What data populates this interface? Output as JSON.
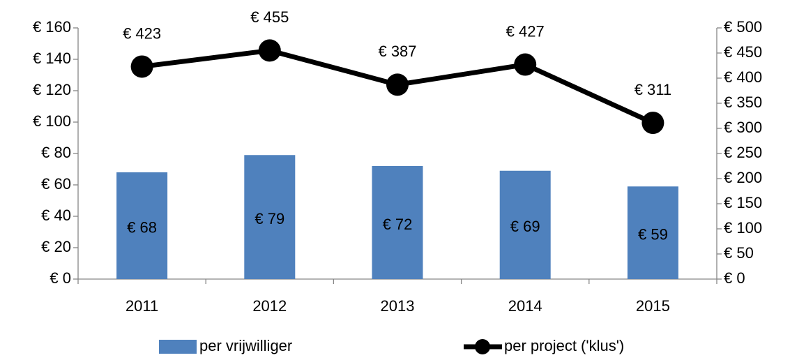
{
  "chart_data": {
    "type": "bar",
    "categories": [
      "2011",
      "2012",
      "2013",
      "2014",
      "2015"
    ],
    "series": [
      {
        "name": "per vrijwilliger",
        "type": "bar",
        "color": "#4f81bd",
        "values": [
          68,
          79,
          72,
          69,
          59
        ],
        "value_labels": [
          "€ 68",
          "€ 79",
          "€ 72",
          "€ 69",
          "€ 59"
        ]
      },
      {
        "name": "per project ('klus')",
        "type": "line",
        "axis": "y2",
        "color": "#000000",
        "values": [
          423,
          455,
          387,
          427,
          311
        ],
        "value_labels": [
          "€ 423",
          "€ 455",
          "€ 387",
          "€ 427",
          "€ 311"
        ]
      }
    ],
    "ylim": [
      0,
      160
    ],
    "yticks": [
      {
        "value": 0,
        "label": "€ 0"
      },
      {
        "value": 20,
        "label": "€ 20"
      },
      {
        "value": 40,
        "label": "€ 40"
      },
      {
        "value": 60,
        "label": "€ 60"
      },
      {
        "value": 80,
        "label": "€ 80"
      },
      {
        "value": 100,
        "label": "€ 100"
      },
      {
        "value": 120,
        "label": "€ 120"
      },
      {
        "value": 140,
        "label": "€ 140"
      },
      {
        "value": 160,
        "label": "€ 160"
      }
    ],
    "y2lim": [
      0,
      500
    ],
    "y2ticks": [
      {
        "value": 0,
        "label": "€ 0"
      },
      {
        "value": 50,
        "label": "€ 50"
      },
      {
        "value": 100,
        "label": "€ 100"
      },
      {
        "value": 150,
        "label": "€ 150"
      },
      {
        "value": 200,
        "label": "€ 200"
      },
      {
        "value": 250,
        "label": "€ 250"
      },
      {
        "value": 300,
        "label": "€ 300"
      },
      {
        "value": 350,
        "label": "€ 350"
      },
      {
        "value": 400,
        "label": "€ 400"
      },
      {
        "value": 450,
        "label": "€ 450"
      },
      {
        "value": 500,
        "label": "€ 500"
      }
    ],
    "grid": false,
    "legend": "bottom"
  }
}
